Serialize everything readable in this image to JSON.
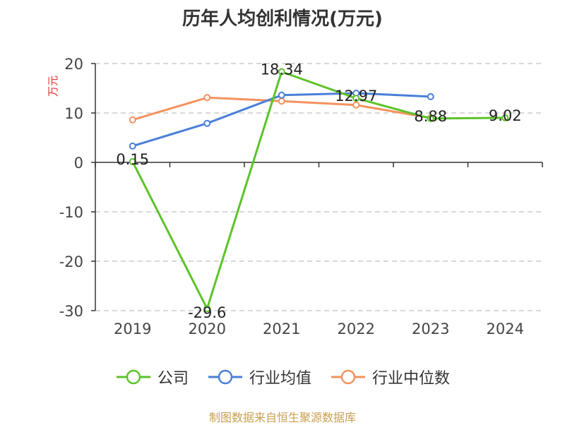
{
  "chart_data": {
    "type": "line",
    "title": "历年人均创利情况(万元)",
    "ylabel": "万元",
    "xlabel": "",
    "categories": [
      "2019",
      "2020",
      "2021",
      "2022",
      "2023",
      "2024"
    ],
    "ylim": [
      -30,
      20
    ],
    "yticks": [
      20,
      10,
      0,
      -10,
      -20,
      -30
    ],
    "grid": true,
    "legend_position": "bottom",
    "series": [
      {
        "name": "公司",
        "color": "#5cc32a",
        "values": [
          0.15,
          -29.6,
          18.34,
          12.97,
          8.88,
          9.02
        ],
        "labels": [
          "0.15",
          "-29.6",
          "18.34",
          "12.97",
          "8.88",
          "9.02"
        ]
      },
      {
        "name": "行业均值",
        "color": "#4a7fd8",
        "values": [
          3.3,
          7.9,
          13.6,
          14.0,
          13.3,
          null
        ]
      },
      {
        "name": "行业中位数",
        "color": "#f4925e",
        "values": [
          8.6,
          13.1,
          12.4,
          11.6,
          9.0,
          null
        ]
      }
    ]
  },
  "source": "制图数据来自恒生聚源数据库"
}
